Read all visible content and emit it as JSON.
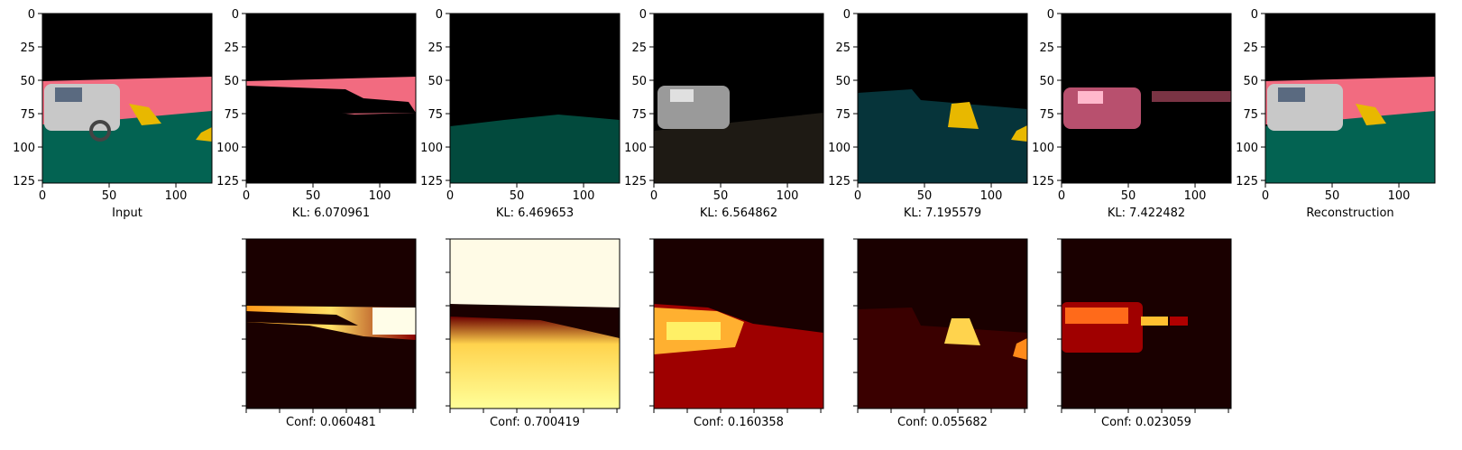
{
  "top_panels": [
    {
      "label": "Input"
    },
    {
      "label": "KL: 6.070961"
    },
    {
      "label": "KL: 6.469653"
    },
    {
      "label": "KL: 6.564862"
    },
    {
      "label": "KL: 7.195579"
    },
    {
      "label": "KL: 7.422482"
    },
    {
      "label": "Reconstruction"
    }
  ],
  "bottom_panels": [
    {
      "label": "Conf: 0.060481"
    },
    {
      "label": "Conf: 0.700419"
    },
    {
      "label": "Conf: 0.160358"
    },
    {
      "label": "Conf: 0.055682"
    },
    {
      "label": "Conf: 0.023059"
    }
  ],
  "axis": {
    "x_ticks": [
      "0",
      "50",
      "100"
    ],
    "y_ticks": [
      "0",
      "25",
      "50",
      "75",
      "100",
      "125"
    ]
  },
  "colors": {
    "background": "#000000",
    "road": "#036352",
    "sky_band": "#f26b80",
    "cone": "#e8b800",
    "car": "#c8c8c8",
    "heat_low": "#1a0000",
    "heat_mid": "#b30000",
    "heat_high": "#ffe066",
    "heat_max": "#ffffff"
  }
}
